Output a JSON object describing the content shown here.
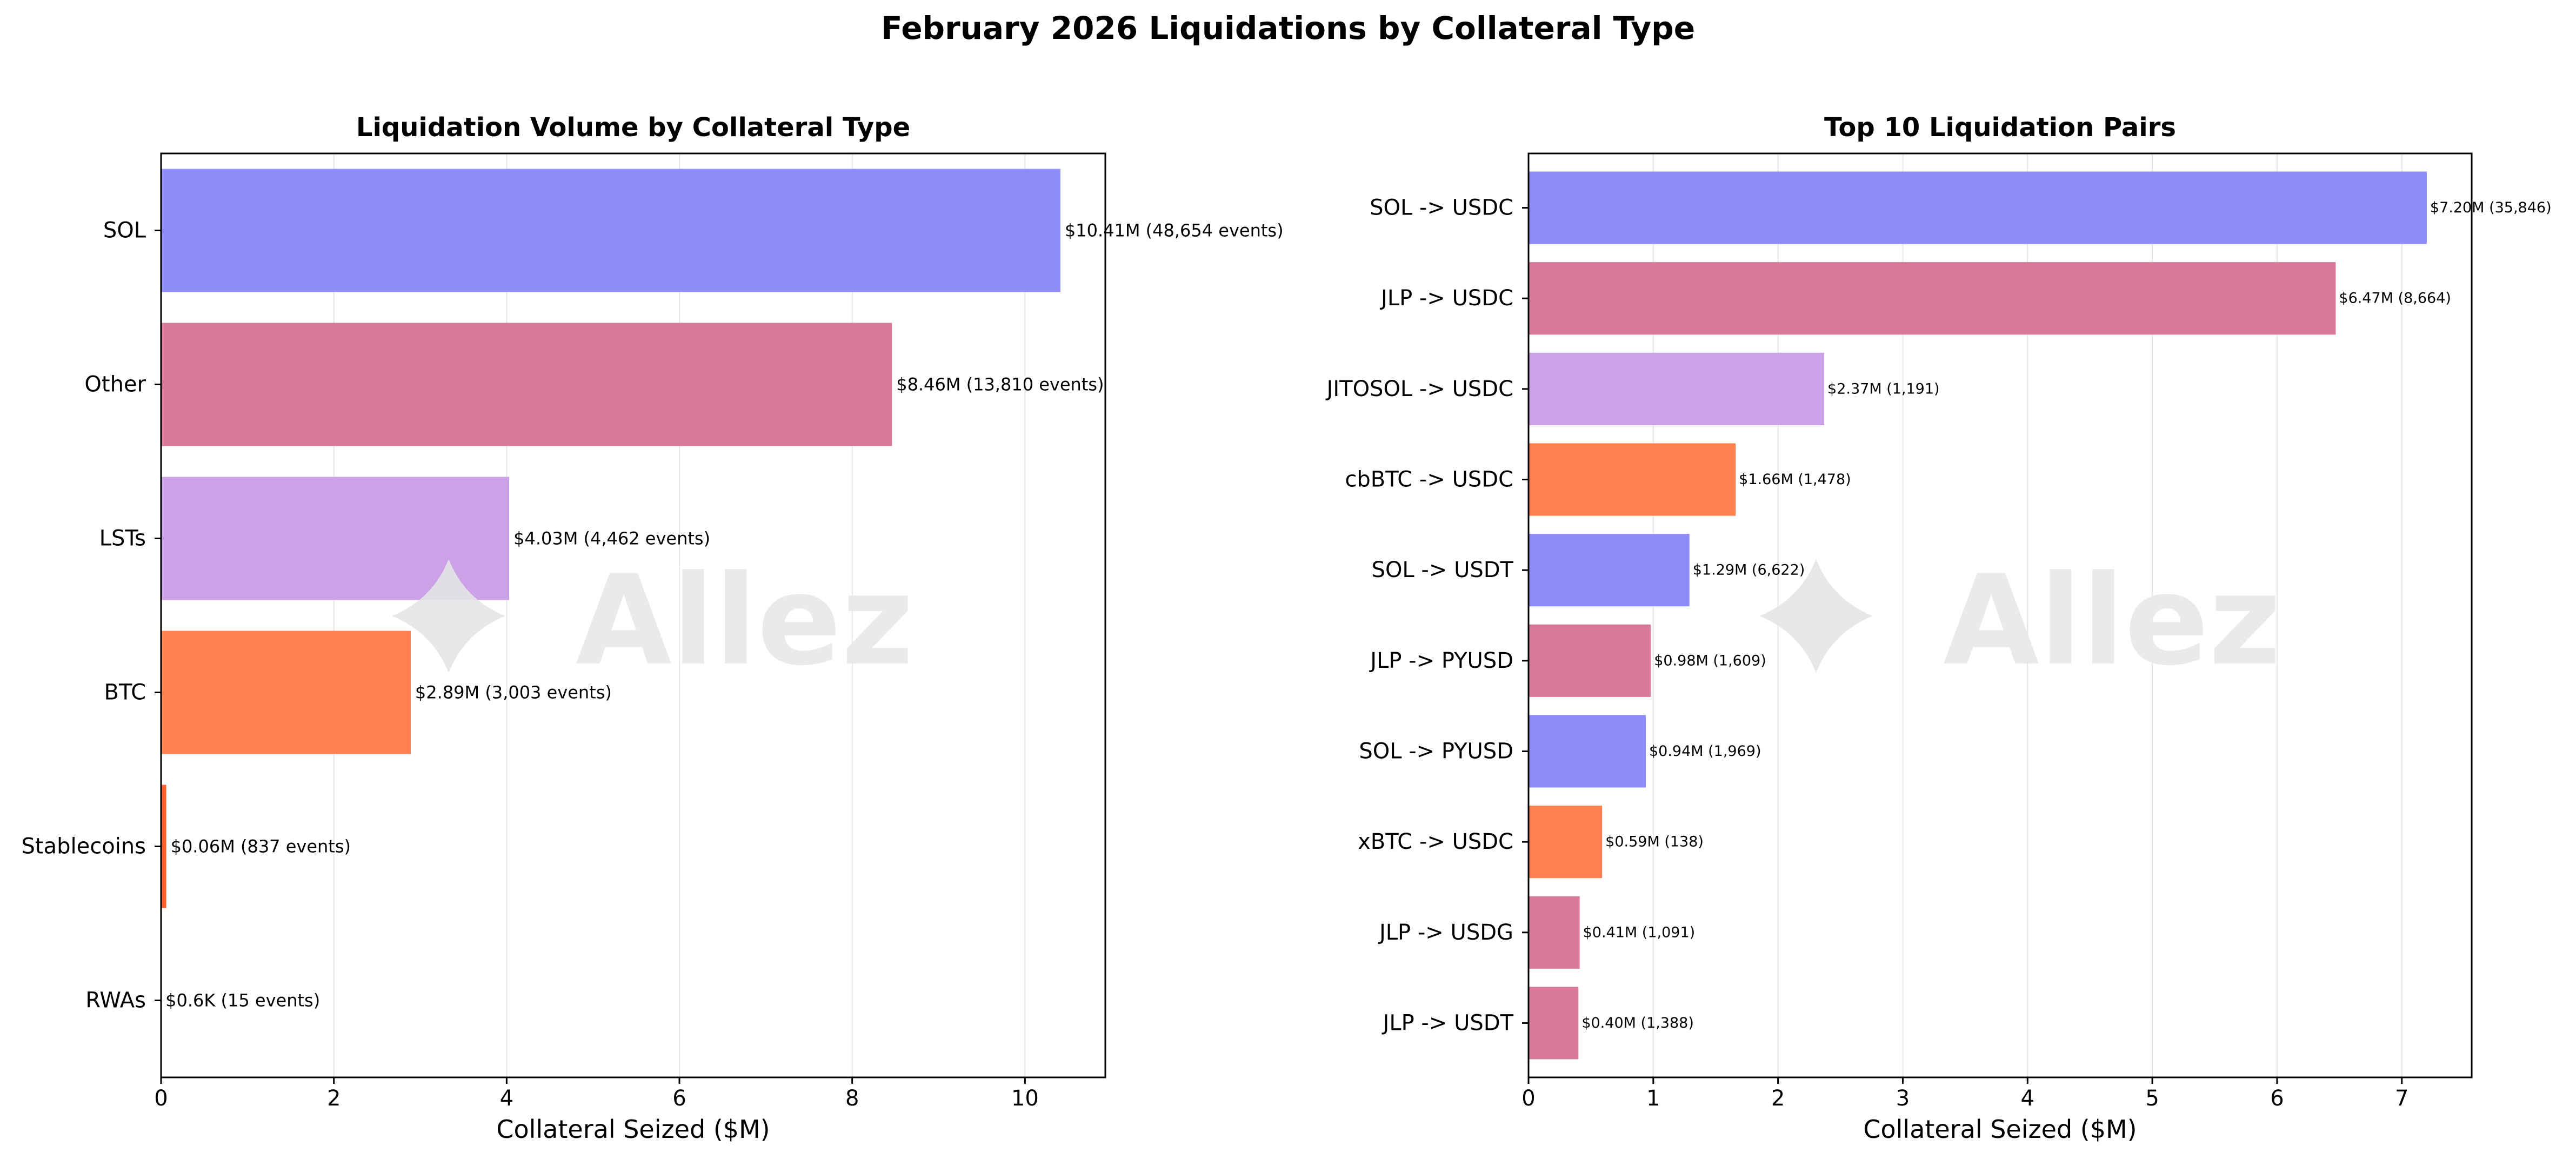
{
  "figure": {
    "title": "February 2026 Liquidations by Collateral Type",
    "watermark": "Allez"
  },
  "colors": {
    "sol": "#8e8cf7",
    "jlp_other": "#d97a99",
    "lsts": "#cba2e8",
    "btc": "#ff7f50",
    "stable": "#ff6030"
  },
  "chart_data": [
    {
      "type": "bar",
      "orientation": "horizontal",
      "title": "Liquidation Volume by Collateral Type",
      "xlabel": "Collateral Seized ($M)",
      "ylabel": "",
      "xlim": [
        0,
        10.93
      ],
      "xticks": [
        0,
        2,
        4,
        6,
        8,
        10
      ],
      "grid": "x",
      "categories": [
        "SOL",
        "Other",
        "LSTs",
        "BTC",
        "Stablecoins",
        "RWAs"
      ],
      "values": [
        10.41,
        8.46,
        4.03,
        2.89,
        0.06,
        0.0006
      ],
      "bar_colors": [
        "sol",
        "jlp_other",
        "lsts",
        "btc",
        "stable",
        "stable"
      ],
      "labels": [
        "$10.41M (48,654 events)",
        "$8.46M (13,810 events)",
        "$4.03M (4,462 events)",
        "$2.89M (3,003 events)",
        "$0.06M (837 events)",
        "$0.6K (15 events)"
      ]
    },
    {
      "type": "bar",
      "orientation": "horizontal",
      "title": "Top 10 Liquidation Pairs",
      "xlabel": "Collateral Seized ($M)",
      "ylabel": "",
      "xlim": [
        0,
        7.56
      ],
      "xticks": [
        0,
        1,
        2,
        3,
        4,
        5,
        6,
        7
      ],
      "grid": "x",
      "categories": [
        "SOL -> USDC",
        "JLP -> USDC",
        "JITOSOL -> USDC",
        "cbBTC -> USDC",
        "SOL -> USDT",
        "JLP -> PYUSD",
        "SOL -> PYUSD",
        "xBTC -> USDC",
        "JLP -> USDG",
        "JLP -> USDT"
      ],
      "values": [
        7.2,
        6.47,
        2.37,
        1.66,
        1.29,
        0.98,
        0.94,
        0.59,
        0.41,
        0.4
      ],
      "bar_colors": [
        "sol",
        "jlp_other",
        "lsts",
        "btc",
        "sol",
        "jlp_other",
        "sol",
        "btc",
        "jlp_other",
        "jlp_other"
      ],
      "labels": [
        "$7.20M (35,846)",
        "$6.47M (8,664)",
        "$2.37M (1,191)",
        "$1.66M (1,478)",
        "$1.29M (6,622)",
        "$0.98M (1,609)",
        "$0.94M (1,969)",
        "$0.59M (138)",
        "$0.41M (1,091)",
        "$0.40M (1,388)"
      ]
    }
  ]
}
